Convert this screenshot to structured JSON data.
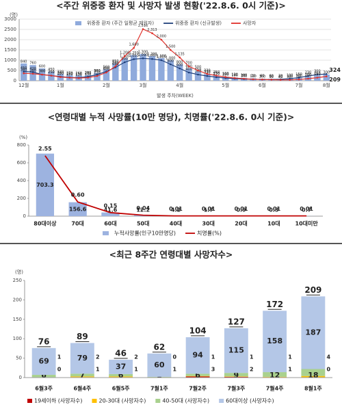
{
  "chart_data": [
    {
      "type": "bar_line",
      "title": "<주간 위중증 환자 및 사망자 발생 현황('22.8.6. 0시 기준)>",
      "y_unit": "(명)",
      "x_label": "발생 주차(WEEK)",
      "categories": [
        "12월",
        null,
        null,
        null,
        "1월",
        null,
        null,
        null,
        null,
        "2월",
        null,
        null,
        null,
        "3월",
        null,
        null,
        null,
        "4월",
        null,
        null,
        null,
        null,
        "5월",
        null,
        null,
        null,
        "6월",
        null,
        null,
        null,
        "7월",
        null,
        null,
        "8월"
      ],
      "ylim": [
        0,
        3000
      ],
      "yticks": [
        0,
        500,
        1000,
        1500,
        2000,
        2500,
        3000
      ],
      "grid": true,
      "series": [
        {
          "name": "위중증 환자 (주간 일평균 재원자)",
          "kind": "bar",
          "color": "#8faadc",
          "values": [
            840,
            760,
            600,
            450,
            330,
            270,
            260,
            280,
            380,
            560,
            850,
            1100,
            1250,
            1300,
            1200,
            1100,
            1000,
            800,
            600,
            450,
            330,
            250,
            200,
            160,
            140,
            120,
            100,
            90,
            80,
            100,
            130,
            200,
            260,
            300
          ],
          "value_labels": [
            "840",
            "760",
            "600",
            "450",
            "330",
            "270",
            "260",
            "280",
            "380",
            "560",
            "850",
            "1,100",
            "1,250",
            "1,300",
            "1,200",
            "1,100",
            "1,000",
            "800",
            "600",
            "450",
            "330",
            "250",
            "200",
            "160",
            "140",
            "120",
            "100",
            "90",
            "80",
            "100",
            "130",
            "200",
            "260",
            "300"
          ]
        },
        {
          "name": "위중증 환자 (신규발생)",
          "kind": "line",
          "color": "#1f3f7a",
          "values": [
            450,
            420,
            300,
            250,
            200,
            160,
            150,
            200,
            300,
            450,
            650,
            900,
            1050,
            1090,
            1060,
            1000,
            800,
            600,
            400,
            300,
            230,
            170,
            130,
            100,
            80,
            70,
            60,
            60,
            70,
            100,
            150,
            230,
            300,
            324
          ],
          "value_labels": [
            "450",
            "420",
            "300",
            "250",
            "200",
            "160",
            "150",
            "200",
            "300",
            "450",
            "650",
            "900",
            "1,050",
            "1,090",
            "1,060",
            "1,000",
            "800",
            "600",
            "400",
            "300",
            "230",
            "170",
            "130",
            "100",
            "80",
            "70",
            "60",
            "60",
            "70",
            "100",
            "150",
            "230",
            "300",
            "324"
          ]
        },
        {
          "name": "사망자",
          "kind": "line",
          "color": "#e0302a",
          "values": [
            360,
            340,
            300,
            250,
            180,
            150,
            130,
            150,
            230,
            400,
            700,
            1200,
            1600,
            2516,
            2313,
            2000,
            1500,
            1135,
            700,
            500,
            330,
            250,
            180,
            130,
            100,
            70,
            60,
            50,
            40,
            40,
            60,
            100,
            150,
            209
          ],
          "value_labels": [
            "360",
            "340",
            "300",
            "250",
            "180",
            "150",
            "130",
            "150",
            "230",
            "400",
            "700",
            "1,200",
            "1,600",
            "2,516",
            "2,313",
            "2,000",
            "1,500",
            "1,135",
            "700",
            "500",
            "330",
            "250",
            "180",
            "130",
            "100",
            "70",
            "60",
            "50",
            "40",
            "40",
            "60",
            "100",
            "150",
            "209"
          ]
        }
      ]
    },
    {
      "type": "bar_line",
      "title": "<연령대별 누적 사망률(10만 명당), 치명률('22.8.6. 0시 기준)>",
      "y_unit": "(%)",
      "categories": [
        "80대이상",
        "70대",
        "60대",
        "50대",
        "40대",
        "30대",
        "20대",
        "10대",
        "10대미만"
      ],
      "ylim": [
        0,
        800
      ],
      "yticks": [
        0,
        200,
        400,
        600,
        800
      ],
      "y2lim": [
        0,
        3
      ],
      "grid": false,
      "series": [
        {
          "name": "누적사망률(인구10만명당)",
          "kind": "bar",
          "color": "#9db3e0",
          "values": [
            703.3,
            156.6,
            41.6,
            12.2,
            4.2,
            1.7,
            0.9,
            0.3,
            0.7
          ]
        },
        {
          "name": "치명률(%)",
          "kind": "line",
          "axis": "y2",
          "color": "#c00000",
          "values": [
            2.55,
            0.6,
            0.15,
            0.04,
            0.01,
            0.01,
            0.01,
            0.01,
            0.01
          ],
          "value_labels": [
            "2.55",
            "0.60",
            "0.15",
            "0.04",
            "0.01",
            "0.01",
            "0.01",
            "0.01",
            "0.01"
          ]
        }
      ]
    },
    {
      "type": "stacked_bar",
      "title": "<최근 8주간 연령대별 사망자수>",
      "y_unit": "(명)",
      "categories": [
        "6월3주",
        "6월4주",
        "6월5주",
        "7월1주",
        "7월2주",
        "7월3주",
        "7월4주",
        "8월1주"
      ],
      "ylim": [
        0,
        250
      ],
      "yticks": [
        0,
        50,
        100,
        150,
        200,
        250
      ],
      "grid": false,
      "totals": [
        76,
        89,
        46,
        62,
        104,
        127,
        172,
        209
      ],
      "series": [
        {
          "name": "19세이하 (사망자수)",
          "color": "#c00000",
          "values": [
            0,
            1,
            1,
            1,
            3,
            2,
            1,
            0
          ]
        },
        {
          "name": "20-30대 (사망자수)",
          "color": "#ffc000",
          "values": [
            1,
            2,
            2,
            0,
            1,
            1,
            1,
            4
          ]
        },
        {
          "name": "40-50대 (사망자수)",
          "color": "#a9d18e",
          "values": [
            6,
            7,
            6,
            1,
            6,
            9,
            12,
            18
          ]
        },
        {
          "name": "60대이상 (사망자수)",
          "color": "#b4c7e7",
          "values": [
            69,
            79,
            37,
            60,
            94,
            115,
            158,
            187
          ]
        }
      ]
    }
  ]
}
